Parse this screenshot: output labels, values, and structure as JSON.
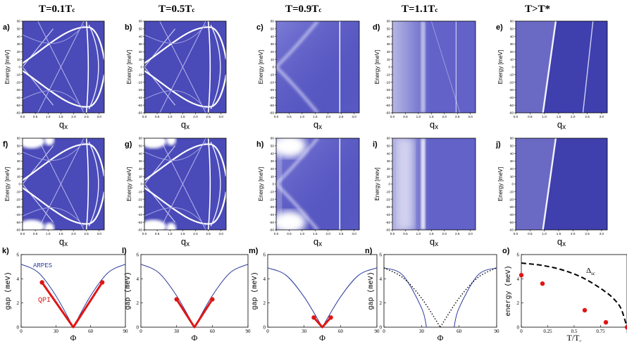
{
  "columns": [
    {
      "title": "T=0.1T",
      "sub": "c"
    },
    {
      "title": "T=0.5T",
      "sub": "c"
    },
    {
      "title": "T=0.9T",
      "sub": "c"
    },
    {
      "title": "T=1.1T",
      "sub": "c"
    },
    {
      "title": "T>T*",
      "sub": ""
    }
  ],
  "heatmap_panels": [
    {
      "label": "a)",
      "ylabel": "Energy [meV]",
      "xlabel": "q",
      "xsub": "x"
    },
    {
      "label": "b)",
      "ylabel": "Energy [meV]",
      "xlabel": "q",
      "xsub": "x"
    },
    {
      "label": "c)",
      "ylabel": "Energy [meV]",
      "xlabel": "q",
      "xsub": "x"
    },
    {
      "label": "d)",
      "ylabel": "Energy [meV]",
      "xlabel": "q",
      "xsub": "x"
    },
    {
      "label": "e)",
      "ylabel": "Energy [meV]",
      "xlabel": "q",
      "xsub": "x"
    },
    {
      "label": "f)",
      "ylabel": "Energy [meV]",
      "xlabel": "q",
      "xsub": "x"
    },
    {
      "label": "g)",
      "ylabel": "Energy [meV]",
      "xlabel": "q",
      "xsub": "x"
    },
    {
      "label": "h)",
      "ylabel": "Energy [meV]",
      "xlabel": "q",
      "xsub": "x"
    },
    {
      "label": "i)",
      "ylabel": "Energy [mev]",
      "xlabel": "q",
      "xsub": "x"
    },
    {
      "label": "j)",
      "ylabel": "Energy [meV]",
      "xlabel": "q",
      "xsub": "x"
    }
  ],
  "heatmap_yticks": [
    "-60",
    "-50",
    "-40",
    "-30",
    "-20",
    "-10",
    "0",
    "10",
    "20",
    "30",
    "40",
    "50",
    "60"
  ],
  "heatmap_xticks": [
    "0.0",
    "0.5",
    "1.0",
    "1.5",
    "2.0",
    "2.5",
    "3.0"
  ],
  "line_panels": [
    {
      "label": "k)",
      "ylabel": "gap (meV)",
      "xlabel": "Φ"
    },
    {
      "label": "l)",
      "ylabel": "gap (meV)",
      "xlabel": "Φ"
    },
    {
      "label": "m)",
      "ylabel": "gap (meV)",
      "xlabel": "Φ"
    },
    {
      "label": "n)",
      "ylabel": "gap (meV)",
      "xlabel": "Φ"
    },
    {
      "label": "o)",
      "ylabel": "energy (meV)",
      "xlabel": "T/T",
      "xsub": "c"
    }
  ],
  "gap_yticks": [
    "0",
    "2",
    "4",
    "6"
  ],
  "gap_xticks": [
    "0",
    "30",
    "60",
    "90"
  ],
  "annotations": {
    "arpes": "ARPES",
    "qpi": "QPI",
    "delta": "Δ",
    "delta_sub": "sc"
  },
  "chart_data": [
    {
      "type": "line",
      "panel": "k)",
      "xlabel": "Φ",
      "ylabel": "gap (meV)",
      "xlim": [
        0,
        90
      ],
      "ylim": [
        0,
        6
      ],
      "series": [
        {
          "name": "ARPES",
          "x": [
            0,
            15,
            30,
            45,
            60,
            75,
            90
          ],
          "values": [
            5.2,
            4.5,
            2.6,
            0,
            2.6,
            4.5,
            5.2
          ]
        },
        {
          "name": "QPI",
          "x": [
            18,
            45,
            70
          ],
          "values": [
            3.7,
            0,
            3.7
          ]
        }
      ]
    },
    {
      "type": "line",
      "panel": "l)",
      "xlabel": "Φ",
      "ylabel": "gap (meV)",
      "xlim": [
        0,
        90
      ],
      "ylim": [
        0,
        6
      ],
      "series": [
        {
          "name": "ARPES",
          "x": [
            0,
            15,
            30,
            45,
            60,
            75,
            90
          ],
          "values": [
            5.2,
            4.5,
            2.6,
            0,
            2.6,
            4.5,
            5.2
          ]
        },
        {
          "name": "QPI",
          "x": [
            30,
            45,
            60
          ],
          "values": [
            2.3,
            0,
            2.3
          ]
        }
      ]
    },
    {
      "type": "line",
      "panel": "m)",
      "xlabel": "Φ",
      "ylabel": "gap (meV)",
      "xlim": [
        0,
        90
      ],
      "ylim": [
        0,
        6
      ],
      "series": [
        {
          "name": "ARPES",
          "x": [
            0,
            15,
            30,
            45,
            60,
            75,
            90
          ],
          "values": [
            4.9,
            4.3,
            2.5,
            0,
            2.5,
            4.3,
            4.9
          ]
        },
        {
          "name": "QPI",
          "x": [
            38,
            45,
            52
          ],
          "values": [
            0.8,
            0,
            0.8
          ]
        }
      ]
    },
    {
      "type": "line",
      "panel": "n)",
      "xlabel": "Φ",
      "ylabel": "gap (meV)",
      "xlim": [
        0,
        90
      ],
      "ylim": [
        0,
        6
      ],
      "series": [
        {
          "name": "ARPES",
          "x": [
            0,
            15,
            30,
            34,
            56,
            60,
            75,
            90
          ],
          "values": [
            4.9,
            4.3,
            1.6,
            0,
            0,
            1.6,
            4.3,
            4.9
          ]
        },
        {
          "name": "dotted",
          "x": [
            0,
            15,
            30,
            45,
            60,
            75,
            90
          ],
          "values": [
            4.9,
            4.1,
            2.4,
            0,
            2.4,
            4.1,
            4.9
          ]
        }
      ]
    },
    {
      "type": "scatter",
      "panel": "o)",
      "xlabel": "T/Tc",
      "ylabel": "energy (meV)",
      "xlim": [
        0,
        1
      ],
      "ylim": [
        0,
        6
      ],
      "xticks": [
        "0",
        "0.25",
        "0.5",
        "0.75",
        "1"
      ],
      "series": [
        {
          "name": "Δsc",
          "x": [
            0,
            0.2,
            0.4,
            0.6,
            0.8,
            0.9,
            0.95,
            1.0
          ],
          "values": [
            5.3,
            5.1,
            4.7,
            4.0,
            2.9,
            2.1,
            1.4,
            0
          ]
        },
        {
          "name": "QPI",
          "x": [
            0,
            0.2,
            0.6,
            0.8,
            1.0
          ],
          "values": [
            4.3,
            3.6,
            1.4,
            0.4,
            0
          ]
        }
      ]
    }
  ]
}
